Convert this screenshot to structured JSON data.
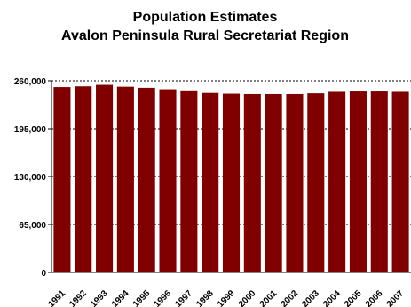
{
  "chart_data": {
    "type": "bar",
    "title": "Population Estimates",
    "subtitle": "Avalon Peninsula Rural Secretariat Region",
    "categories": [
      "1991",
      "1992",
      "1993",
      "1994",
      "1995",
      "1996",
      "1997",
      "1998",
      "1999",
      "2000",
      "2001",
      "2002",
      "2003",
      "2004",
      "2005",
      "2006",
      "2007"
    ],
    "values": [
      251500,
      252500,
      254500,
      252000,
      250500,
      248500,
      247000,
      243500,
      242500,
      242000,
      242000,
      242000,
      243000,
      245000,
      245500,
      245500,
      245000
    ],
    "y_tick_labels": [
      "0",
      "65,000",
      "130,000",
      "195,000",
      "260,000"
    ],
    "y_ticks": [
      0,
      65000,
      130000,
      195000,
      260000
    ],
    "ylim": [
      0,
      260000
    ],
    "grid": true,
    "legend": "none",
    "bar_color": "#800000"
  }
}
